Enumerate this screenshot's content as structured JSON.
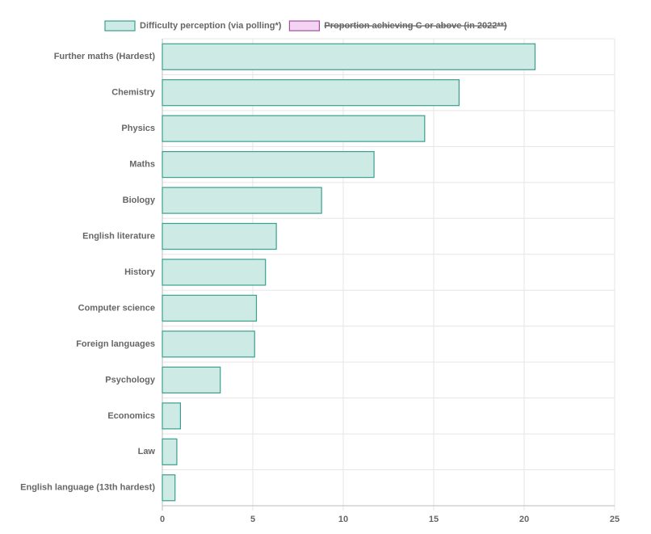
{
  "chart_data": {
    "type": "hbar",
    "categories": [
      "Further maths (Hardest)",
      "Chemistry",
      "Physics",
      "Maths",
      "Biology",
      "English literature",
      "History",
      "Computer science",
      "Foreign languages",
      "Psychology",
      "Economics",
      "Law",
      "English language (13th hardest)"
    ],
    "series": [
      {
        "name": "Difficulty perception (via polling*)",
        "color": "#3a9f8f",
        "fill": "#cdeae5",
        "values": [
          20.6,
          16.4,
          14.5,
          11.7,
          8.8,
          6.3,
          5.7,
          5.2,
          5.1,
          3.2,
          1.0,
          0.8,
          0.7
        ]
      },
      {
        "name": "Proportion achieving C or above (in 2022**)",
        "color": "#a44ea6",
        "fill": "#f3d5f3",
        "hidden": true
      }
    ],
    "xlim": [
      0,
      25
    ],
    "xticks": [
      0,
      5,
      10,
      15,
      20,
      25
    ],
    "grid": true,
    "legend": "top"
  }
}
